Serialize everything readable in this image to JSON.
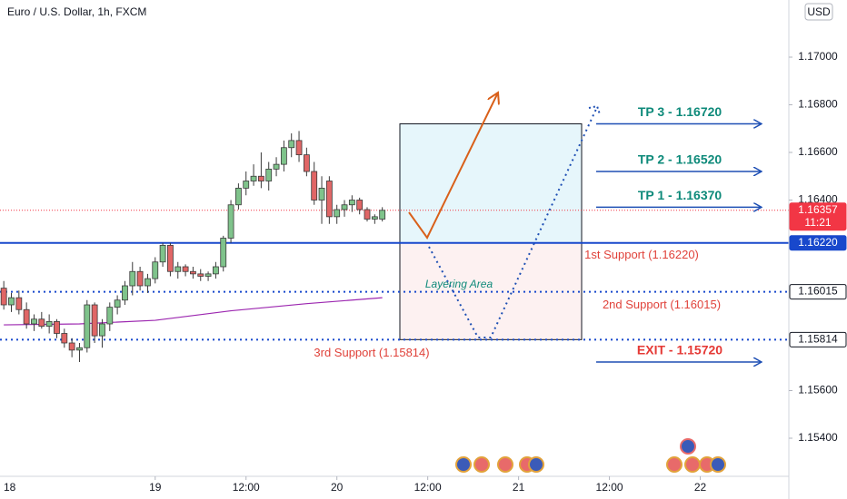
{
  "chart_data": {
    "type": "candlestick",
    "title": "Euro / U.S. Dollar, 1h, FXCM",
    "currency": "USD",
    "x": [
      0,
      1,
      2,
      3,
      4,
      5,
      6,
      7,
      8,
      9,
      10,
      11,
      12,
      13,
      14,
      15,
      16,
      17,
      18,
      19,
      20,
      21,
      22,
      23,
      24,
      25,
      26,
      27,
      28,
      29,
      30,
      31,
      32,
      33,
      34,
      35,
      36,
      37,
      38,
      39,
      40,
      41,
      42,
      43,
      44,
      45,
      46,
      47,
      48,
      49,
      50
    ],
    "open": [
      1.1603,
      1.1596,
      1.1599,
      1.1594,
      1.1588,
      1.159,
      1.1587,
      1.1589,
      1.1584,
      1.158,
      1.1577,
      1.1578,
      1.1596,
      1.1583,
      1.1588,
      1.1595,
      1.1598,
      1.1604,
      1.161,
      1.1604,
      1.1607,
      1.1614,
      1.1621,
      1.161,
      1.1612,
      1.161,
      1.1609,
      1.1608,
      1.1609,
      1.1612,
      1.1624,
      1.1638,
      1.1645,
      1.1648,
      1.165,
      1.1648,
      1.1653,
      1.1655,
      1.1662,
      1.1665,
      1.1659,
      1.1652,
      1.164,
      1.1648,
      1.1633,
      1.1636,
      1.1638,
      1.164,
      1.1636,
      1.1632,
      1.1632
    ],
    "high": [
      1.1606,
      1.1601,
      1.1602,
      1.1597,
      1.1592,
      1.1593,
      1.1592,
      1.159,
      1.1586,
      1.1582,
      1.158,
      1.1598,
      1.1597,
      1.159,
      1.1597,
      1.16,
      1.1606,
      1.1614,
      1.1612,
      1.1609,
      1.1616,
      1.1622,
      1.1622,
      1.1614,
      1.1613,
      1.1612,
      1.1611,
      1.161,
      1.1614,
      1.1625,
      1.164,
      1.1647,
      1.1652,
      1.1655,
      1.166,
      1.1656,
      1.1658,
      1.1665,
      1.1668,
      1.1669,
      1.1662,
      1.1656,
      1.165,
      1.165,
      1.1638,
      1.164,
      1.1642,
      1.1641,
      1.1637,
      1.1634,
      1.1637
    ],
    "low": [
      1.1594,
      1.1593,
      1.1592,
      1.1586,
      1.1585,
      1.1586,
      1.1584,
      1.1582,
      1.1578,
      1.1574,
      1.1572,
      1.1576,
      1.158,
      1.1578,
      1.1585,
      1.1592,
      1.1596,
      1.16,
      1.1602,
      1.1601,
      1.1605,
      1.1612,
      1.1608,
      1.1607,
      1.1608,
      1.1607,
      1.1606,
      1.1606,
      1.1607,
      1.161,
      1.1622,
      1.1636,
      1.1642,
      1.1646,
      1.1645,
      1.1644,
      1.165,
      1.1652,
      1.1658,
      1.1656,
      1.165,
      1.1638,
      1.163,
      1.163,
      1.163,
      1.1633,
      1.1635,
      1.1634,
      1.1631,
      1.163,
      1.1631
    ],
    "close": [
      1.1596,
      1.1599,
      1.1594,
      1.1588,
      1.159,
      1.1587,
      1.1589,
      1.1584,
      1.158,
      1.1577,
      1.1578,
      1.1596,
      1.1583,
      1.1588,
      1.1595,
      1.1598,
      1.1604,
      1.161,
      1.1604,
      1.1607,
      1.1614,
      1.1621,
      1.161,
      1.1612,
      1.161,
      1.1609,
      1.1608,
      1.1609,
      1.1612,
      1.1624,
      1.1638,
      1.1645,
      1.1648,
      1.165,
      1.1648,
      1.1653,
      1.1655,
      1.1662,
      1.1665,
      1.1659,
      1.1652,
      1.164,
      1.1645,
      1.1633,
      1.1636,
      1.1638,
      1.164,
      1.1636,
      1.1632,
      1.1633,
      1.16357
    ],
    "up_color": "#7fc38b",
    "down_color": "#e06666",
    "edge_color": "#3a3a3a",
    "moving_average": {
      "x": [
        0,
        10,
        20,
        30,
        40,
        50
      ],
      "values": [
        1.15876,
        1.1588,
        1.15895,
        1.15935,
        1.15965,
        1.1599
      ],
      "color": "#9c27b0"
    },
    "xlim": [
      -0.5,
      103.7
    ],
    "xticks": [
      {
        "value": -4,
        "label": "18"
      },
      {
        "value": 20,
        "label": "19"
      },
      {
        "value": 32,
        "label": "12:00"
      },
      {
        "value": 44,
        "label": "20"
      },
      {
        "value": 56,
        "label": "12:00"
      },
      {
        "value": 68,
        "label": "21"
      },
      {
        "value": 80,
        "label": "12:00"
      },
      {
        "value": 92,
        "label": "22"
      }
    ],
    "ylim": [
      1.1524,
      1.1724
    ],
    "yticks": [
      {
        "value": 1.17,
        "label": "1.17000"
      },
      {
        "value": 1.168,
        "label": "1.16800"
      },
      {
        "value": 1.166,
        "label": "1.16600"
      },
      {
        "value": 1.164,
        "label": "1.16400"
      },
      {
        "value": 1.156,
        "label": "1.15600"
      },
      {
        "value": 1.154,
        "label": "1.15400"
      }
    ],
    "grid": false,
    "price_tags": [
      {
        "value": 1.16357,
        "label": "1.16357",
        "color": "#f23645"
      },
      {
        "value": 1.1622,
        "label": "1.16220",
        "color": "#1848cc"
      },
      {
        "value": 1.16015,
        "label": "1.16015",
        "color": "#ffffff"
      },
      {
        "value": 1.15814,
        "label": "1.15814",
        "color": "#ffffff"
      }
    ],
    "countdown": "11:21",
    "current_price_line": {
      "value": 1.16357,
      "color": "#f23645"
    },
    "supports": [
      {
        "label": "1st Support (1.16220)",
        "value": 1.1622,
        "style": "solid"
      },
      {
        "label": "2nd Support (1.16015)",
        "value": 1.16015,
        "style": "dotted"
      },
      {
        "label": "3rd Support (1.15814)",
        "value": 1.15814,
        "style": "dotted"
      }
    ],
    "zone_label": "Layering Area",
    "targets": [
      {
        "label": "TP 3 - 1.16720",
        "value": 1.1672,
        "color": "#0e8a7a"
      },
      {
        "label": "TP 2 - 1.16520",
        "value": 1.1652,
        "color": "#0e8a7a"
      },
      {
        "label": "TP 1 - 1.16370",
        "value": 1.1637,
        "color": "#0e8a7a"
      },
      {
        "label": "EXIT - 1.15720",
        "value": 1.1572,
        "color": "#e53935"
      }
    ]
  }
}
